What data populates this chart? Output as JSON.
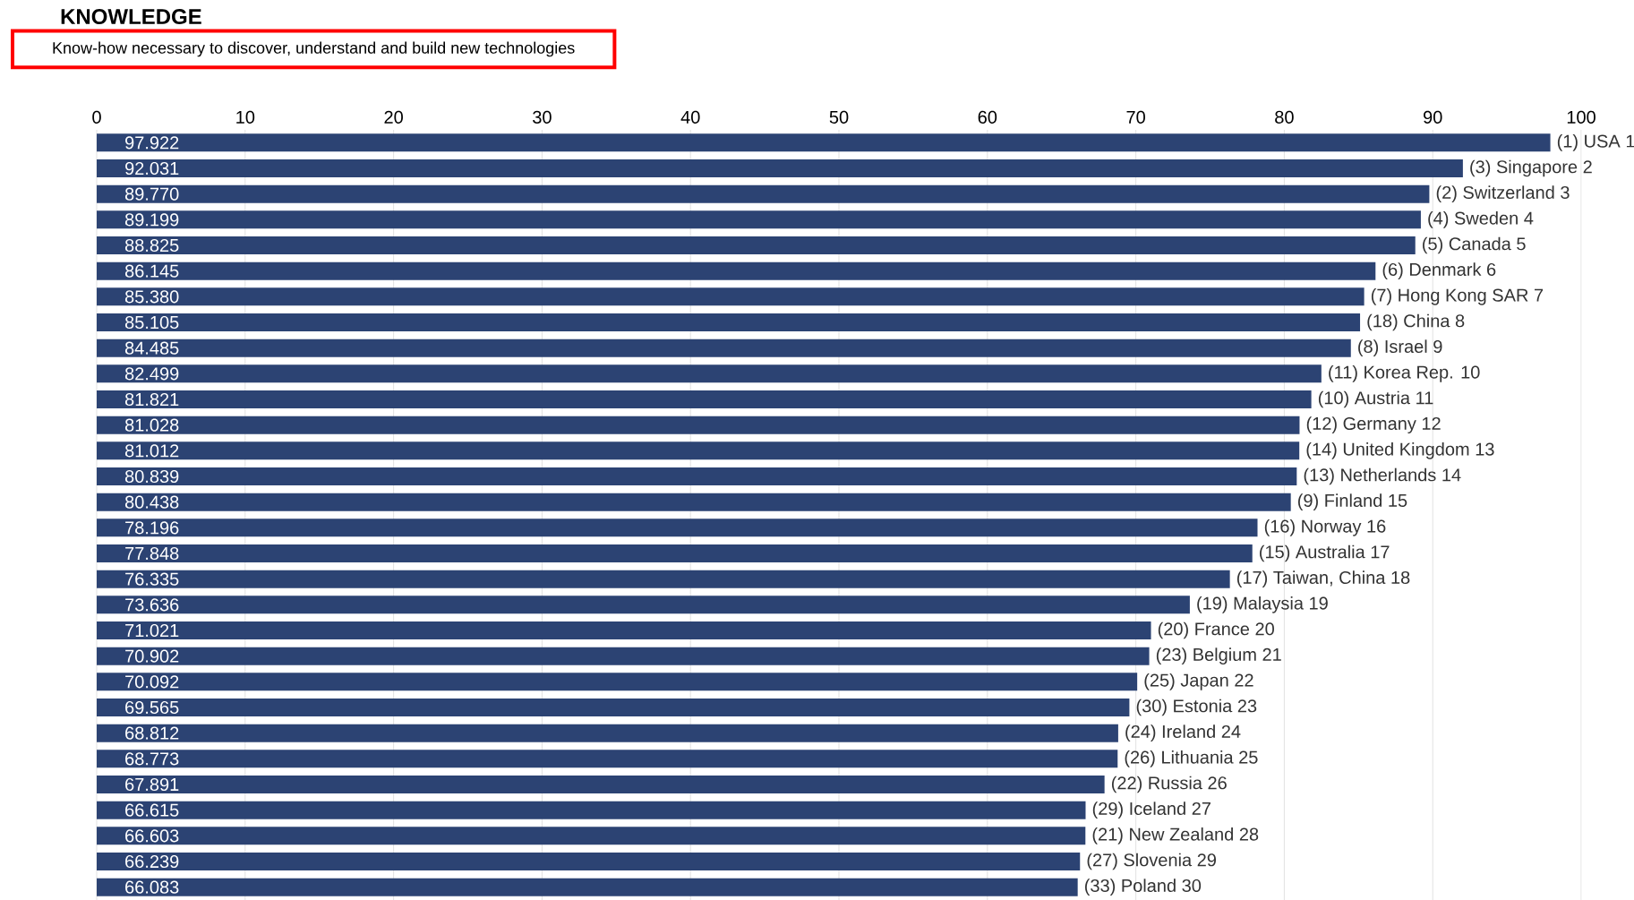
{
  "chart_data": {
    "type": "bar",
    "orientation": "horizontal",
    "title": "KNOWLEDGE",
    "subtitle": "Know-how necessary to discover, understand and build new technologies",
    "categories": [
      "(1) USA 1",
      "(3) Singapore 2",
      "(2) Switzerland 3",
      "(4) Sweden 4",
      "(5) Canada 5",
      "(6) Denmark 6",
      "(7) Hong Kong SAR 7",
      "(18) China 8",
      "(8) Israel 9",
      "(11) Korea Rep. 10",
      "(10) Austria 11",
      "(12) Germany 12",
      "(14) United Kingdom 13",
      "(13) Netherlands 14",
      "(9) Finland 15",
      "(16) Norway 16",
      "(15) Australia 17",
      "(17) Taiwan, China 18",
      "(19) Malaysia 19",
      "(20) France 20",
      "(23) Belgium 21",
      "(25) Japan 22",
      "(30) Estonia 23",
      "(24) Ireland 24",
      "(26) Lithuania 25",
      "(22) Russia 26",
      "(29) Iceland 27",
      "(21) New Zealand 28",
      "(27) Slovenia 29",
      "(33) Poland 30"
    ],
    "values": [
      97.922,
      92.031,
      89.77,
      89.199,
      88.825,
      86.145,
      85.38,
      85.105,
      84.485,
      82.499,
      81.821,
      81.028,
      81.012,
      80.839,
      80.438,
      78.196,
      77.848,
      76.335,
      73.636,
      71.021,
      70.902,
      70.092,
      69.565,
      68.812,
      68.773,
      67.891,
      66.615,
      66.603,
      66.239,
      66.083
    ],
    "value_labels": [
      "97.922",
      "92.031",
      "89.770",
      "89.199",
      "88.825",
      "86.145",
      "85.380",
      "85.105",
      "84.485",
      "82.499",
      "81.821",
      "81.028",
      "81.012",
      "80.839",
      "80.438",
      "78.196",
      "77.848",
      "76.335",
      "73.636",
      "71.021",
      "70.902",
      "70.092",
      "69.565",
      "68.812",
      "68.773",
      "67.891",
      "66.615",
      "66.603",
      "66.239",
      "66.083"
    ],
    "color": "#2c4373",
    "xlim": [
      0,
      100
    ],
    "xticks": [
      0,
      10,
      20,
      30,
      40,
      50,
      60,
      70,
      80,
      90,
      100
    ],
    "grid": "x",
    "tick_labels": "x"
  }
}
